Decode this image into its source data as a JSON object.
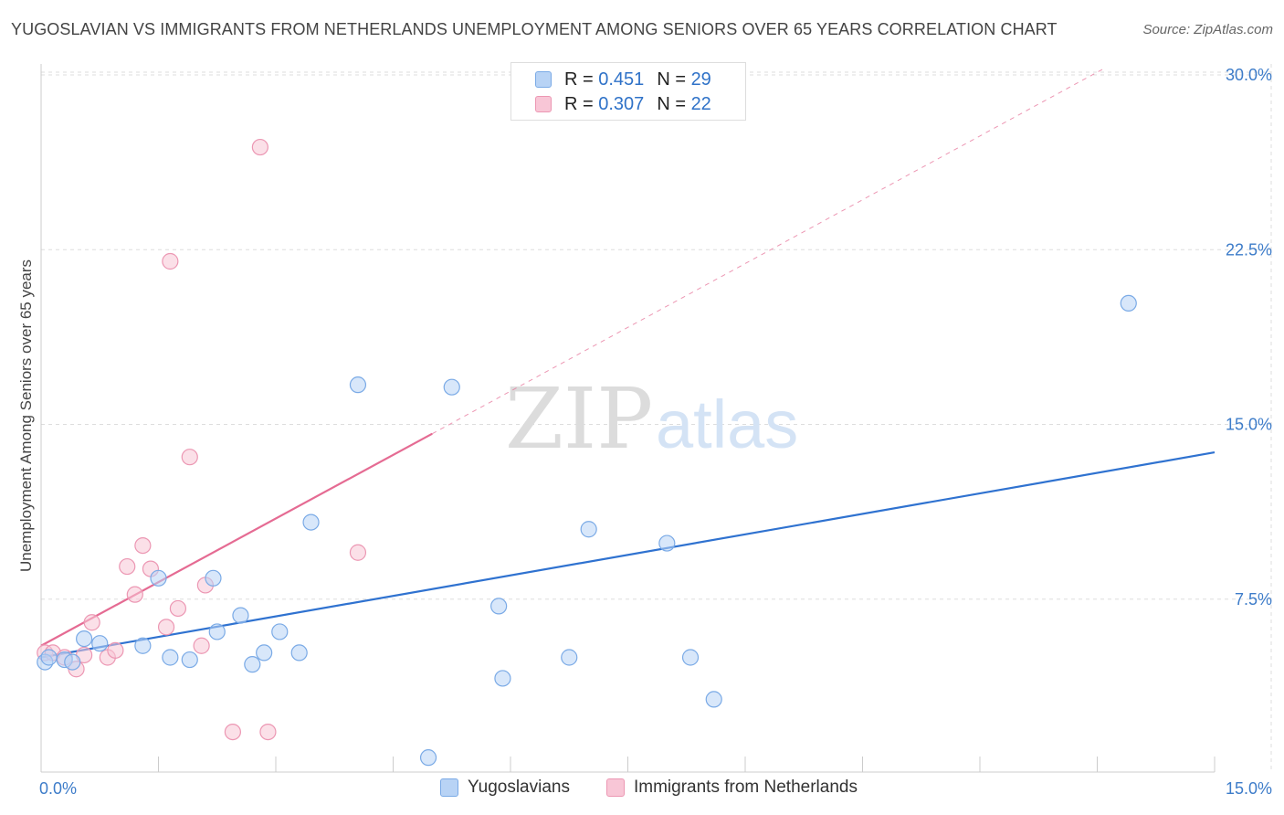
{
  "header": {
    "title": "YUGOSLAVIAN VS IMMIGRANTS FROM NETHERLANDS UNEMPLOYMENT AMONG SENIORS OVER 65 YEARS CORRELATION CHART",
    "source": "Source: ZipAtlas.com"
  },
  "watermark": {
    "zip": "ZIP",
    "atlas": "atlas"
  },
  "legend": {
    "rows": [
      {
        "r_label": "R =",
        "r_value": "0.451",
        "n_label": "N =",
        "n_value": "29"
      },
      {
        "r_label": "R =",
        "r_value": "0.307",
        "n_label": "N =",
        "n_value": "22"
      }
    ]
  },
  "colors": {
    "blue_fill": "#b8d3f5",
    "blue_stroke": "#7aaae6",
    "blue_line": "#2f72d0",
    "pink_fill": "#f8c6d6",
    "pink_stroke": "#ec97b3",
    "pink_line": "#e56b93",
    "grid": "#dddddd",
    "tick_text": "#3d7cc9"
  },
  "chart_data": {
    "type": "scatter",
    "title": "YUGOSLAVIAN VS IMMIGRANTS FROM NETHERLANDS UNEMPLOYMENT AMONG SENIORS OVER 65 YEARS CORRELATION CHART",
    "xlabel": "",
    "ylabel": "Unemployment Among Seniors over 65 years",
    "xlim": [
      0,
      15
    ],
    "ylim": [
      0,
      31
    ],
    "x_tick_labels": [
      "0.0%",
      "15.0%"
    ],
    "y_ticks": [
      7.5,
      15.0,
      22.5,
      30.0
    ],
    "y_tick_labels": [
      "7.5%",
      "15.0%",
      "22.5%",
      "30.0%"
    ],
    "grid": true,
    "series": [
      {
        "name": "Yugoslavians",
        "r": 0.451,
        "n": 29,
        "points": [
          [
            0.05,
            4.8
          ],
          [
            0.1,
            5.0
          ],
          [
            0.3,
            4.9
          ],
          [
            0.4,
            4.8
          ],
          [
            0.55,
            5.8
          ],
          [
            0.75,
            5.6
          ],
          [
            1.3,
            5.5
          ],
          [
            1.5,
            8.4
          ],
          [
            1.65,
            5.0
          ],
          [
            1.9,
            4.9
          ],
          [
            2.2,
            8.4
          ],
          [
            2.25,
            6.1
          ],
          [
            2.55,
            6.8
          ],
          [
            2.7,
            4.7
          ],
          [
            2.85,
            5.2
          ],
          [
            3.05,
            6.1
          ],
          [
            3.3,
            5.2
          ],
          [
            3.45,
            10.8
          ],
          [
            4.05,
            16.7
          ],
          [
            4.95,
            0.7
          ],
          [
            5.25,
            16.6
          ],
          [
            5.85,
            7.2
          ],
          [
            5.9,
            4.1
          ],
          [
            6.75,
            5.0
          ],
          [
            7.0,
            10.5
          ],
          [
            8.0,
            9.9
          ],
          [
            8.3,
            5.0
          ],
          [
            8.6,
            3.2
          ],
          [
            13.9,
            20.2
          ]
        ],
        "trend": {
          "x": [
            0.0,
            15.0
          ],
          "y": [
            5.0,
            13.8
          ]
        }
      },
      {
        "name": "Immigrants from Netherlands",
        "r": 0.307,
        "n": 22,
        "points": [
          [
            0.05,
            5.2
          ],
          [
            0.15,
            5.2
          ],
          [
            0.3,
            5.0
          ],
          [
            0.45,
            4.5
          ],
          [
            0.55,
            5.1
          ],
          [
            0.65,
            6.5
          ],
          [
            0.85,
            5.0
          ],
          [
            0.95,
            5.3
          ],
          [
            1.1,
            8.9
          ],
          [
            1.2,
            7.7
          ],
          [
            1.3,
            9.8
          ],
          [
            1.4,
            8.8
          ],
          [
            1.6,
            6.3
          ],
          [
            1.65,
            22.0
          ],
          [
            1.75,
            7.1
          ],
          [
            1.9,
            13.6
          ],
          [
            2.05,
            5.5
          ],
          [
            2.1,
            8.1
          ],
          [
            2.45,
            1.8
          ],
          [
            2.8,
            26.9
          ],
          [
            2.9,
            1.8
          ],
          [
            4.05,
            9.5
          ]
        ],
        "trend": {
          "x": [
            0.0,
            5.0
          ],
          "y": [
            5.5,
            14.6
          ]
        },
        "trend_extension": {
          "x": [
            5.0,
            13.6
          ],
          "y": [
            14.6,
            30.3
          ]
        }
      }
    ]
  }
}
